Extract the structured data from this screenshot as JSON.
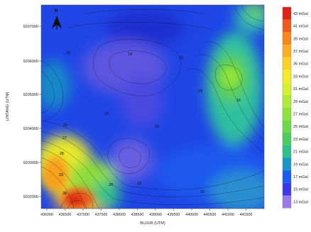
{
  "map": {
    "y_axis_label": "LINTANG (UTM)",
    "x_axis_label": "BUJUR (UTM)",
    "north_label": "N",
    "y_ticks": [
      "9207000",
      "9206000",
      "9205000",
      "9204000",
      "9203000",
      "9202000"
    ],
    "x_ticks": [
      "436000",
      "436500",
      "437000",
      "437500",
      "438000",
      "438500",
      "439000",
      "439500",
      "440000",
      "440500",
      "441000",
      "441500"
    ],
    "contour_labels": [
      "15",
      "14",
      "15",
      "15",
      "15",
      "23",
      "16",
      "23",
      "27",
      "28",
      "33",
      "38",
      "20",
      "18",
      "23"
    ]
  },
  "legend": {
    "unit": "mGal",
    "entries": [
      "43 mGal",
      "41 mGal",
      "39 mGal",
      "37 mGal",
      "35 mGal",
      "33 mGal",
      "31 mGal",
      "29 mGal",
      "27 mGal",
      "25 mGal",
      "23 mGal",
      "21 mGal",
      "19 mGal",
      "17 mGal",
      "15 mGal",
      "13 mGal"
    ],
    "colors": [
      "#e0201a",
      "#ee5a1c",
      "#f7861e",
      "#fbae22",
      "#fcd126",
      "#f3ea2a",
      "#d6ef2e",
      "#b2ea38",
      "#8ee23e",
      "#6ed848",
      "#4ccc60",
      "#2ec08a",
      "#1896c8",
      "#1a5cee",
      "#3a3ae8",
      "#9a7ae6"
    ]
  }
}
